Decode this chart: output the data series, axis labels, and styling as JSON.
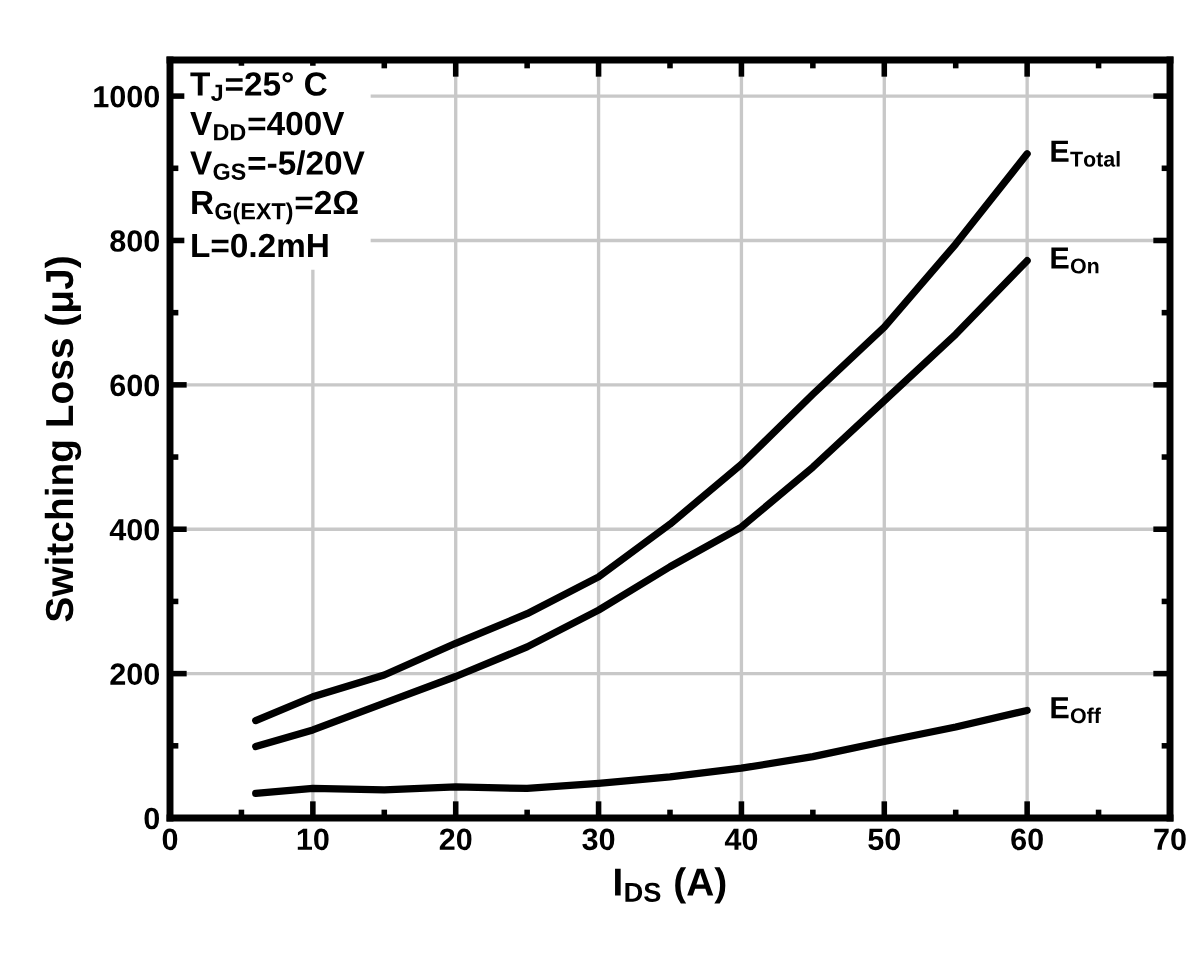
{
  "chart_data": {
    "type": "line",
    "xlabel": "I$_{DS}$ (A)",
    "ylabel": "Switching Loss (μJ)",
    "x": [
      6,
      10,
      15,
      20,
      25,
      30,
      35,
      40,
      45,
      50,
      55,
      60
    ],
    "series": [
      {
        "name": "E$_{Total}$",
        "color": "#000000",
        "values": [
          135,
          168,
          198,
          242,
          283,
          334,
          407,
          490,
          587,
          680,
          795,
          920
        ]
      },
      {
        "name": "E$_{On}$",
        "color": "#000000",
        "values": [
          99,
          122,
          159,
          196,
          237,
          288,
          348,
          403,
          486,
          578,
          670,
          772
        ]
      },
      {
        "name": "E$_{Off}$",
        "color": "#000000",
        "values": [
          34,
          41,
          39,
          43,
          41,
          48,
          57,
          69,
          85,
          106,
          126,
          149
        ]
      }
    ],
    "annotations": [
      "T$_{J}$=25° C",
      "V$_{DD}$=400V",
      "V$_{GS}$=-5/20V",
      "R$_{G(EXT)}$=2Ω",
      "L=0.2mH"
    ],
    "xlim": [
      0,
      70
    ],
    "ylim": [
      0,
      1050
    ],
    "xticks": [
      0,
      {
        "value": 5,
        "label": null
      },
      10,
      {
        "value": 15,
        "label": null
      },
      20,
      {
        "value": 25,
        "label": null
      },
      30,
      {
        "value": 35,
        "label": null
      },
      40,
      {
        "value": 45,
        "label": null
      },
      50,
      {
        "value": 55,
        "label": null
      },
      60,
      {
        "value": 65,
        "label": null
      },
      70
    ],
    "yticks": [
      0,
      {
        "value": 100,
        "label": null
      },
      200,
      {
        "value": 300,
        "label": null
      },
      400,
      {
        "value": 500,
        "label": null
      },
      600,
      {
        "value": 700,
        "label": null
      },
      800,
      {
        "value": 900,
        "label": null
      },
      1000
    ],
    "grid": true,
    "legend": "right",
    "marker": "none",
    "line_style": "solid"
  }
}
